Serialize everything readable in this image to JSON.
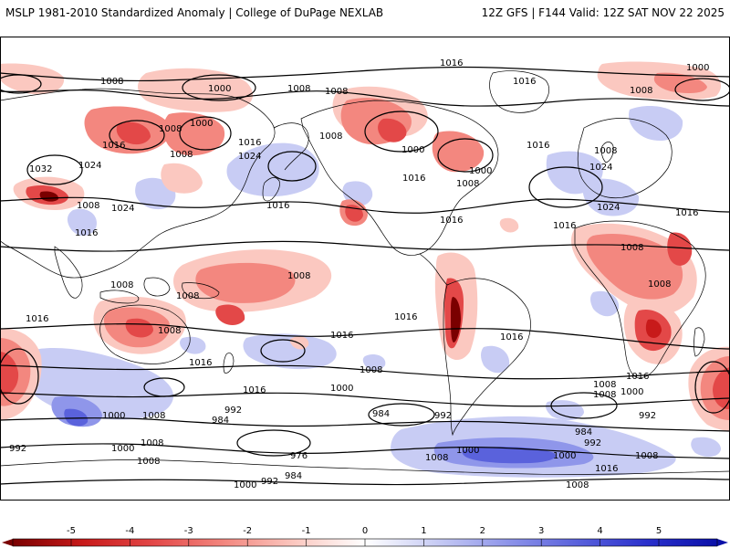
{
  "header": {
    "title_left": "MSLP 1981-2010 Standardized Anomaly | College of DuPage NEXLAB",
    "title_right": "12Z GFS | F144 Valid: 12Z SAT NOV 22 2025"
  },
  "colors": {
    "neg5": "#7a0000",
    "neg4": "#c81a1a",
    "neg3": "#e34848",
    "neg2": "#f3877f",
    "neg1": "#fbc8c0",
    "zero": "#ffffff",
    "pos1": "#c8ccf4",
    "pos2": "#8f96ea",
    "pos3": "#5a62dc",
    "pos4": "#2a30cc",
    "pos5": "#0a10a8",
    "isobar": "#000000",
    "coast": "#000000",
    "border": "#808080"
  },
  "legend": {
    "ticks": [
      "-5",
      "-4",
      "-3",
      "-2",
      "-1",
      "0",
      "1",
      "2",
      "3",
      "4",
      "5"
    ]
  },
  "isobar_labels": [
    {
      "id": "l1",
      "text": "1008"
    },
    {
      "id": "l2",
      "text": "1000"
    },
    {
      "id": "l3",
      "text": "1008"
    },
    {
      "id": "l4",
      "text": "1000"
    },
    {
      "id": "l5",
      "text": "1008"
    },
    {
      "id": "l6",
      "text": "1008"
    },
    {
      "id": "l7",
      "text": "1016"
    },
    {
      "id": "l8",
      "text": "1016"
    },
    {
      "id": "l9",
      "text": "1032"
    },
    {
      "id": "l10",
      "text": "1024"
    },
    {
      "id": "l11",
      "text": "1008"
    },
    {
      "id": "l12",
      "text": "1016"
    },
    {
      "id": "l13",
      "text": "1024"
    },
    {
      "id": "l14",
      "text": "1008"
    },
    {
      "id": "l15",
      "text": "1000"
    },
    {
      "id": "l16",
      "text": "1008"
    },
    {
      "id": "l17",
      "text": "1024"
    },
    {
      "id": "l18",
      "text": "1016"
    },
    {
      "id": "l19",
      "text": "1016"
    },
    {
      "id": "l20",
      "text": "1008"
    },
    {
      "id": "l21",
      "text": "1008"
    },
    {
      "id": "l22",
      "text": "1008"
    },
    {
      "id": "l23",
      "text": "1016"
    },
    {
      "id": "l24",
      "text": "1000"
    },
    {
      "id": "l25",
      "text": "1008"
    },
    {
      "id": "l26",
      "text": "1016"
    },
    {
      "id": "l27",
      "text": "1024"
    },
    {
      "id": "l28",
      "text": "1016"
    },
    {
      "id": "l29",
      "text": "1008"
    },
    {
      "id": "l30",
      "text": "1000"
    },
    {
      "id": "l31",
      "text": "1016"
    },
    {
      "id": "l32",
      "text": "1016"
    },
    {
      "id": "l33",
      "text": "1024"
    },
    {
      "id": "l34",
      "text": "1008"
    },
    {
      "id": "l35",
      "text": "1016"
    },
    {
      "id": "l36",
      "text": "1008"
    },
    {
      "id": "l37",
      "text": "1008"
    },
    {
      "id": "l38",
      "text": "1016"
    },
    {
      "id": "l39",
      "text": "1008"
    },
    {
      "id": "l40",
      "text": "1016"
    },
    {
      "id": "l41",
      "text": "1016"
    },
    {
      "id": "l42",
      "text": "1016"
    },
    {
      "id": "l43",
      "text": "1016"
    },
    {
      "id": "l44",
      "text": "1016"
    },
    {
      "id": "l45",
      "text": "1008"
    },
    {
      "id": "l46",
      "text": "1000"
    },
    {
      "id": "l47",
      "text": "1016"
    },
    {
      "id": "l48",
      "text": "1008"
    },
    {
      "id": "l49",
      "text": "1000"
    },
    {
      "id": "l50",
      "text": "1008"
    },
    {
      "id": "l51",
      "text": "992"
    },
    {
      "id": "l52",
      "text": "984"
    },
    {
      "id": "l53",
      "text": "984"
    },
    {
      "id": "l54",
      "text": "992"
    },
    {
      "id": "l55",
      "text": "992"
    },
    {
      "id": "l56",
      "text": "984"
    },
    {
      "id": "l57",
      "text": "992"
    },
    {
      "id": "l58",
      "text": "1000"
    },
    {
      "id": "l59",
      "text": "1008"
    },
    {
      "id": "l60",
      "text": "1000"
    },
    {
      "id": "l61",
      "text": "1008"
    },
    {
      "id": "l62",
      "text": "976"
    },
    {
      "id": "l63",
      "text": "984"
    },
    {
      "id": "l64",
      "text": "1000"
    },
    {
      "id": "l65",
      "text": "992"
    },
    {
      "id": "l66",
      "text": "1008"
    },
    {
      "id": "l67",
      "text": "1000"
    },
    {
      "id": "l68",
      "text": "1000"
    },
    {
      "id": "l69",
      "text": "1008"
    },
    {
      "id": "l70",
      "text": "1016"
    },
    {
      "id": "l71",
      "text": "1008"
    },
    {
      "id": "l72",
      "text": "1008"
    },
    {
      "id": "l73",
      "text": "992"
    }
  ]
}
